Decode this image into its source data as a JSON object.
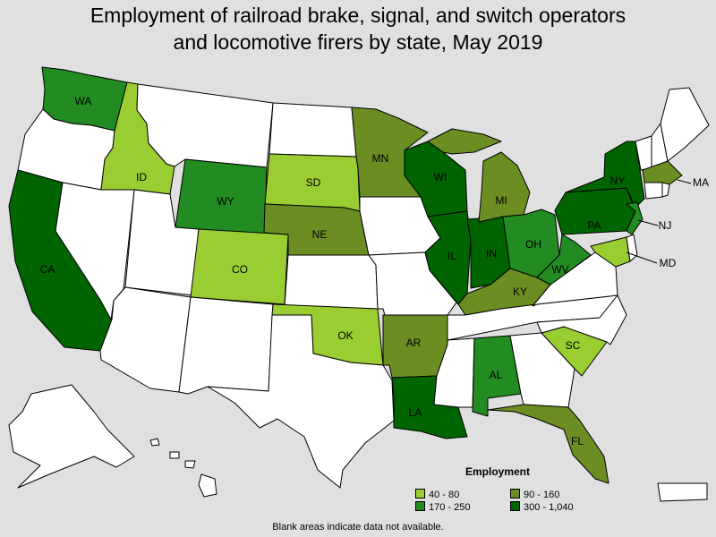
{
  "title": {
    "line1": "Employment of railroad brake, signal, and switch operators",
    "line2": "and locomotive firers by state, May 2019"
  },
  "legend": {
    "title": "Employment",
    "items": [
      {
        "label": "40 - 80",
        "color": "#9acd32"
      },
      {
        "label": "90 - 160",
        "color": "#6b8e23"
      },
      {
        "label": "170 - 250",
        "color": "#228b22"
      },
      {
        "label": "300 - 1,040",
        "color": "#006400"
      }
    ]
  },
  "colors": {
    "background": "#e0e0e0",
    "no_data": "#ffffff",
    "c1": "#9acd32",
    "c2": "#6b8e23",
    "c3": "#228b22",
    "c4": "#006400"
  },
  "state_labels": {
    "WA": "WA",
    "ID": "ID",
    "WY": "WY",
    "SD": "SD",
    "MN": "MN",
    "WI": "WI",
    "MI": "MI",
    "NY": "NY",
    "MA": "MA",
    "PA": "PA",
    "NJ": "NJ",
    "MD": "MD",
    "OH": "OH",
    "WV": "WV",
    "IN": "IN",
    "IL": "IL",
    "NE": "NE",
    "CO": "CO",
    "CA": "CA",
    "KY": "KY",
    "OK": "OK",
    "AR": "AR",
    "SC": "SC",
    "AL": "AL",
    "LA": "LA",
    "FL": "FL"
  },
  "footnote": "Blank areas indicate data not available."
}
